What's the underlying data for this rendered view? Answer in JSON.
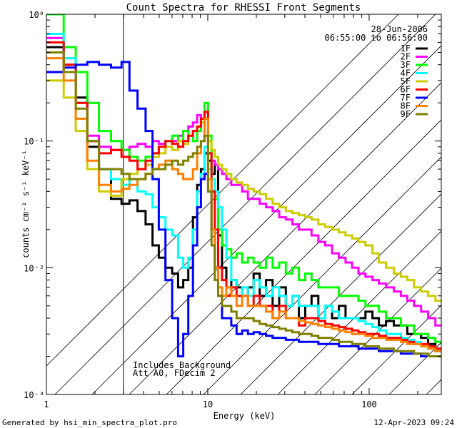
{
  "footer": {
    "generated_by": "Generated by hsi_min_spectra_plot.pro",
    "timestamp": "12-Apr-2023 09:24"
  },
  "chart_data": {
    "type": "line",
    "title": "Count Spectra for RHESSI Front Segments",
    "xlabel": "Energy (keV)",
    "ylabel": "counts cm⁻² s⁻¹ keV⁻¹",
    "xscale": "log",
    "yscale": "log",
    "xlim": [
      1,
      280
    ],
    "ylim": [
      0.001,
      1
    ],
    "x_ticks": [
      {
        "value": 1,
        "label": "1"
      },
      {
        "value": 10,
        "label": "10"
      },
      {
        "value": 100,
        "label": "100"
      }
    ],
    "y_ticks": [
      {
        "value": 1,
        "label": "10⁰"
      },
      {
        "value": 0.1,
        "label": "10⁻¹"
      },
      {
        "value": 0.01,
        "label": "10⁻²"
      },
      {
        "value": 0.001,
        "label": "10⁻³"
      }
    ],
    "date": "28-Jun-2006",
    "time_range": "06:55:00 to 06:56:00",
    "annotations": [
      "Includes Background",
      "Att A0, FDecim 2"
    ],
    "shaded_region_kev": [
      1,
      3
    ],
    "legend_position": "top-right",
    "x_centers": [
      1.17,
      1.4,
      1.65,
      1.95,
      2.3,
      2.75,
      3.1,
      3.45,
      3.9,
      4.35,
      4.75,
      5.2,
      5.75,
      6.3,
      6.8,
      7.3,
      7.85,
      8.35,
      8.85,
      9.3,
      9.8,
      10.3,
      10.8,
      11.3,
      11.9,
      12.6,
      13.5,
      14.5,
      15.7,
      17,
      18.5,
      20,
      22,
      24,
      26.5,
      29,
      32,
      35,
      38.5,
      42,
      46,
      51,
      56,
      62,
      68,
      75,
      82,
      90,
      100,
      110,
      120,
      135,
      150,
      165,
      180,
      200,
      220,
      245,
      270
    ],
    "series": [
      {
        "name": "1F",
        "color": "#000000",
        "values": [
          0.55,
          0.4,
          0.22,
          0.09,
          0.06,
          0.035,
          0.032,
          0.034,
          0.028,
          0.022,
          0.015,
          0.012,
          0.01,
          0.009,
          0.007,
          0.008,
          0.01,
          0.025,
          0.045,
          0.06,
          0.08,
          0.07,
          0.055,
          0.065,
          0.018,
          0.01,
          0.007,
          0.008,
          0.007,
          0.006,
          0.007,
          0.009,
          0.006,
          0.008,
          0.005,
          0.007,
          0.005,
          0.006,
          0.004,
          0.005,
          0.006,
          0.004,
          0.005,
          0.004,
          0.005,
          0.004,
          0.004,
          0.004,
          0.0045,
          0.004,
          0.0035,
          0.0038,
          0.0035,
          0.0035,
          0.003,
          0.003,
          0.0028,
          0.0025,
          0.0022
        ]
      },
      {
        "name": "2F",
        "color": "#ff00ff",
        "values": [
          0.65,
          0.45,
          0.2,
          0.11,
          0.09,
          0.085,
          0.085,
          0.09,
          0.095,
          0.09,
          0.1,
          0.095,
          0.1,
          0.1,
          0.11,
          0.12,
          0.13,
          0.14,
          0.16,
          0.15,
          0.17,
          0.08,
          0.07,
          0.065,
          0.06,
          0.055,
          0.05,
          0.045,
          0.045,
          0.04,
          0.035,
          0.035,
          0.032,
          0.03,
          0.028,
          0.025,
          0.024,
          0.022,
          0.02,
          0.02,
          0.018,
          0.016,
          0.015,
          0.013,
          0.012,
          0.011,
          0.01,
          0.009,
          0.0085,
          0.008,
          0.0075,
          0.007,
          0.0065,
          0.006,
          0.0055,
          0.005,
          0.0045,
          0.004,
          0.0035
        ]
      },
      {
        "name": "3F",
        "color": "#00ff00",
        "values": [
          1.0,
          0.55,
          0.35,
          0.2,
          0.12,
          0.1,
          0.085,
          0.075,
          0.07,
          0.075,
          0.08,
          0.09,
          0.1,
          0.11,
          0.1,
          0.12,
          0.11,
          0.1,
          0.12,
          0.14,
          0.2,
          0.11,
          0.05,
          0.035,
          0.02,
          0.015,
          0.014,
          0.012,
          0.013,
          0.011,
          0.012,
          0.011,
          0.01,
          0.012,
          0.01,
          0.011,
          0.009,
          0.01,
          0.008,
          0.009,
          0.008,
          0.007,
          0.007,
          0.007,
          0.006,
          0.006,
          0.006,
          0.0055,
          0.005,
          0.005,
          0.0045,
          0.004,
          0.004,
          0.0035,
          0.0035,
          0.003,
          0.003,
          0.0028,
          0.0026
        ]
      },
      {
        "name": "4F",
        "color": "#00ffff",
        "values": [
          0.7,
          0.45,
          0.2,
          0.1,
          0.06,
          0.05,
          0.045,
          0.05,
          0.04,
          0.038,
          0.03,
          0.025,
          0.02,
          0.018,
          0.012,
          0.01,
          0.012,
          0.02,
          0.04,
          0.055,
          0.09,
          0.06,
          0.05,
          0.04,
          0.03,
          0.02,
          0.012,
          0.008,
          0.006,
          0.007,
          0.006,
          0.008,
          0.007,
          0.006,
          0.007,
          0.006,
          0.005,
          0.006,
          0.005,
          0.005,
          0.005,
          0.004,
          0.005,
          0.0045,
          0.004,
          0.004,
          0.004,
          0.0038,
          0.0036,
          0.0034,
          0.0032,
          0.003,
          0.003,
          0.0028,
          0.0027,
          0.0026,
          0.0025,
          0.0024,
          0.0022
        ]
      },
      {
        "name": "5F",
        "color": "#cccc00",
        "values": [
          0.3,
          0.22,
          0.12,
          0.06,
          0.04,
          0.037,
          0.05,
          0.055,
          0.06,
          0.065,
          0.075,
          0.08,
          0.09,
          0.085,
          0.1,
          0.095,
          0.11,
          0.12,
          0.13,
          0.14,
          0.15,
          0.1,
          0.085,
          0.075,
          0.065,
          0.06,
          0.055,
          0.05,
          0.047,
          0.045,
          0.042,
          0.04,
          0.038,
          0.035,
          0.032,
          0.03,
          0.028,
          0.027,
          0.026,
          0.025,
          0.024,
          0.022,
          0.021,
          0.02,
          0.019,
          0.018,
          0.017,
          0.016,
          0.015,
          0.013,
          0.011,
          0.01,
          0.009,
          0.0085,
          0.008,
          0.007,
          0.0065,
          0.006,
          0.0055
        ]
      },
      {
        "name": "6F",
        "color": "#ff0000",
        "values": [
          0.6,
          0.4,
          0.2,
          0.1,
          0.08,
          0.085,
          0.075,
          0.07,
          0.06,
          0.07,
          0.08,
          0.09,
          0.1,
          0.095,
          0.09,
          0.1,
          0.11,
          0.12,
          0.13,
          0.15,
          0.17,
          0.08,
          0.04,
          0.02,
          0.01,
          0.008,
          0.006,
          0.007,
          0.006,
          0.006,
          0.005,
          0.006,
          0.005,
          0.005,
          0.004,
          0.005,
          0.004,
          0.004,
          0.0035,
          0.004,
          0.004,
          0.0038,
          0.0036,
          0.0035,
          0.0034,
          0.0033,
          0.0032,
          0.0031,
          0.003,
          0.003,
          0.0029,
          0.0028,
          0.0028,
          0.0027,
          0.0026,
          0.0025,
          0.0025,
          0.0024,
          0.0023
        ]
      },
      {
        "name": "7F",
        "color": "#0000ff",
        "values": [
          0.35,
          0.38,
          0.4,
          0.42,
          0.4,
          0.38,
          0.42,
          0.25,
          0.18,
          0.12,
          0.05,
          0.02,
          0.008,
          0.004,
          0.002,
          0.003,
          0.006,
          0.015,
          0.03,
          0.05,
          0.055,
          0.04,
          0.02,
          0.01,
          0.006,
          0.004,
          0.004,
          0.0035,
          0.003,
          0.0032,
          0.003,
          0.0031,
          0.003,
          0.0029,
          0.0028,
          0.0028,
          0.0027,
          0.0027,
          0.0026,
          0.0026,
          0.0026,
          0.0025,
          0.0025,
          0.0025,
          0.0024,
          0.0024,
          0.0024,
          0.0023,
          0.0023,
          0.0023,
          0.0022,
          0.0022,
          0.0022,
          0.0021,
          0.0021,
          0.0021,
          0.002,
          0.002,
          0.002
        ]
      },
      {
        "name": "8F",
        "color": "#ff8000",
        "values": [
          0.45,
          0.3,
          0.15,
          0.07,
          0.045,
          0.04,
          0.042,
          0.045,
          0.05,
          0.055,
          0.06,
          0.065,
          0.07,
          0.06,
          0.055,
          0.05,
          0.05,
          0.06,
          0.08,
          0.1,
          0.15,
          0.05,
          0.02,
          0.01,
          0.007,
          0.006,
          0.007,
          0.006,
          0.005,
          0.006,
          0.005,
          0.005,
          0.005,
          0.0045,
          0.004,
          0.0045,
          0.004,
          0.004,
          0.0038,
          0.0037,
          0.0036,
          0.0035,
          0.0034,
          0.0033,
          0.0032,
          0.0031,
          0.003,
          0.003,
          0.0029,
          0.0028,
          0.0028,
          0.0027,
          0.0027,
          0.0026,
          0.0025,
          0.0025,
          0.0024,
          0.0023,
          0.0022
        ]
      },
      {
        "name": "9F",
        "color": "#808000",
        "values": [
          0.5,
          0.35,
          0.18,
          0.1,
          0.06,
          0.06,
          0.055,
          0.05,
          0.05,
          0.055,
          0.06,
          0.06,
          0.065,
          0.07,
          0.065,
          0.07,
          0.075,
          0.08,
          0.09,
          0.1,
          0.11,
          0.04,
          0.015,
          0.008,
          0.006,
          0.005,
          0.005,
          0.0045,
          0.004,
          0.004,
          0.004,
          0.0038,
          0.0036,
          0.0035,
          0.0034,
          0.0033,
          0.0032,
          0.0031,
          0.003,
          0.003,
          0.0029,
          0.0028,
          0.0028,
          0.0027,
          0.0026,
          0.0026,
          0.0025,
          0.0025,
          0.0024,
          0.0024,
          0.0023,
          0.0023,
          0.0022,
          0.0022,
          0.0022,
          0.0021,
          0.0021,
          0.002,
          0.002
        ]
      }
    ]
  }
}
